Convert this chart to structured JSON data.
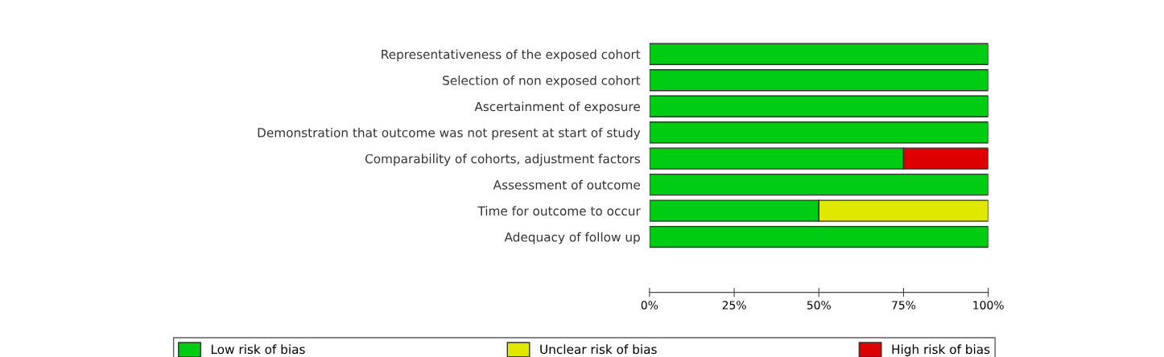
{
  "chart_data": {
    "type": "bar",
    "orientation": "horizontal",
    "stacked": true,
    "categories": [
      "Representativeness of the exposed cohort",
      "Selection of non exposed cohort",
      "Ascertainment of exposure",
      "Demonstration that outcome was not present at start of study",
      "Comparability of cohorts, adjustment factors",
      "Assessment of outcome",
      "Time for outcome to occur",
      "Adequacy of follow up"
    ],
    "series": [
      {
        "name": "Low risk of bias",
        "color": "#00cc11",
        "values": [
          100,
          100,
          100,
          100,
          75,
          100,
          50,
          100
        ]
      },
      {
        "name": "Unclear risk of bias",
        "color": "#e0e800",
        "values": [
          0,
          0,
          0,
          0,
          0,
          0,
          50,
          0
        ]
      },
      {
        "name": "High risk of bias",
        "color": "#dd0000",
        "values": [
          0,
          0,
          0,
          0,
          25,
          0,
          0,
          0
        ]
      }
    ],
    "xlim": [
      0,
      100
    ],
    "xticks": [
      {
        "value": 0,
        "label": "0%"
      },
      {
        "value": 25,
        "label": "25%"
      },
      {
        "value": 50,
        "label": "50%"
      },
      {
        "value": 75,
        "label": "75%"
      },
      {
        "value": 100,
        "label": "100%"
      }
    ],
    "grid": false,
    "legend": "bottom"
  }
}
